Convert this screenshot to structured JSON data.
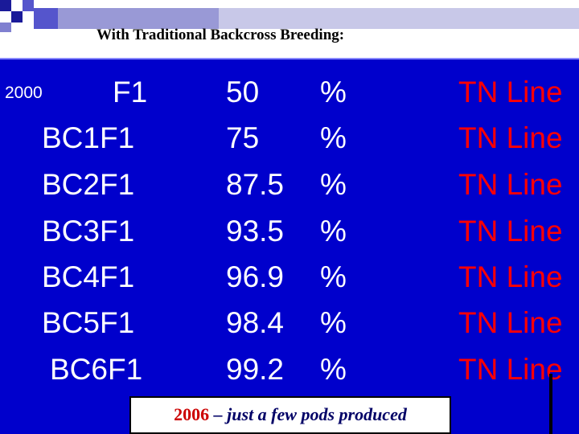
{
  "title": "With Traditional Backcross Breeding:",
  "start_year": "2000",
  "rows": [
    {
      "generation": "F1",
      "percent": "50",
      "unit": "%",
      "line": "TN Line"
    },
    {
      "generation": "BC1F1",
      "percent": "75",
      "unit": "%",
      "line": "TN Line"
    },
    {
      "generation": "BC2F1",
      "percent": "87.5",
      "unit": "%",
      "line": "TN Line"
    },
    {
      "generation": "BC3F1",
      "percent": "93.5",
      "unit": "%",
      "line": "TN Line"
    },
    {
      "generation": "BC4F1",
      "percent": "96.9",
      "unit": "%",
      "line": "TN Line"
    },
    {
      "generation": "BC5F1",
      "percent": "98.4",
      "unit": "%",
      "line": "TN Line"
    },
    {
      "generation": "BC6F1",
      "percent": "99.2",
      "unit": "%",
      "line": "TN Line"
    }
  ],
  "note": {
    "year": "2006",
    "text": " – just a few pods produced"
  },
  "colors": {
    "background": "#0000cc",
    "line_text": "#ff0000",
    "text": "#ffffff"
  }
}
